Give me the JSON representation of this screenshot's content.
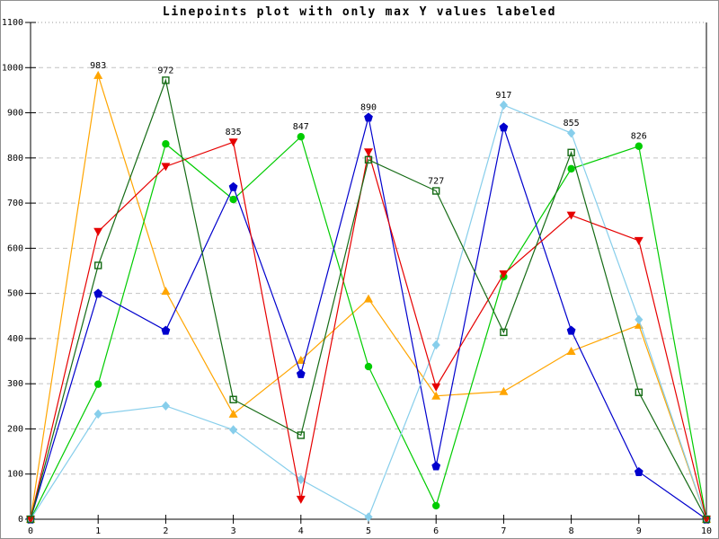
{
  "window": {
    "background": "#ffffff",
    "border_color": "#909090"
  },
  "chart_data": {
    "type": "line",
    "title": "Linepoints plot with only max Y values labeled",
    "xlabel": "",
    "ylabel": "",
    "xlim": [
      0,
      10
    ],
    "ylim": [
      0,
      1100
    ],
    "x_ticks": [
      0,
      1,
      2,
      3,
      4,
      5,
      6,
      7,
      8,
      9,
      10
    ],
    "y_ticks": [
      0,
      100,
      200,
      300,
      400,
      500,
      600,
      700,
      800,
      900,
      1000,
      1100
    ],
    "grid": "horizontal-dashed",
    "legend": "none",
    "annotation_rule": "only the maximum y value at each x position is labeled",
    "x": [
      0,
      1,
      2,
      3,
      4,
      5,
      6,
      7,
      8,
      9,
      10
    ],
    "series": [
      {
        "name": "orange-triangle-series",
        "color": "#FFA500",
        "marker": "triangle-up",
        "values": [
          0,
          983,
          505,
          233,
          352,
          488,
          273,
          283,
          372,
          430,
          0
        ]
      },
      {
        "name": "green-circle-series",
        "color": "#00CC00",
        "marker": "circle-filled",
        "values": [
          0,
          299,
          831,
          708,
          847,
          338,
          30,
          537,
          776,
          826,
          0
        ]
      },
      {
        "name": "blue-pentagon-series",
        "color": "#0000CD",
        "marker": "pentagon-filled",
        "values": [
          0,
          500,
          418,
          736,
          322,
          890,
          118,
          868,
          418,
          105,
          0
        ]
      },
      {
        "name": "skyblue-diamond-series",
        "color": "#87CEEB",
        "marker": "diamond-filled",
        "values": [
          0,
          233,
          251,
          198,
          88,
          5,
          386,
          917,
          855,
          442,
          0
        ]
      },
      {
        "name": "red-triangle-series",
        "color": "#E60000",
        "marker": "triangle-down",
        "values": [
          0,
          637,
          781,
          835,
          44,
          813,
          293,
          543,
          673,
          617,
          0
        ]
      },
      {
        "name": "darkgreen-square-series",
        "color": "#156B15",
        "marker": "square-open",
        "values": [
          0,
          562,
          972,
          265,
          186,
          796,
          727,
          414,
          812,
          281,
          0
        ]
      }
    ],
    "point_labels": [
      {
        "x": 1,
        "y": 983,
        "text": "983"
      },
      {
        "x": 2,
        "y": 972,
        "text": "972"
      },
      {
        "x": 3,
        "y": 835,
        "text": "835"
      },
      {
        "x": 4,
        "y": 847,
        "text": "847"
      },
      {
        "x": 5,
        "y": 890,
        "text": "890"
      },
      {
        "x": 6,
        "y": 727,
        "text": "727"
      },
      {
        "x": 7,
        "y": 917,
        "text": "917"
      },
      {
        "x": 8,
        "y": 855,
        "text": "855"
      },
      {
        "x": 9,
        "y": 826,
        "text": "826"
      }
    ]
  }
}
